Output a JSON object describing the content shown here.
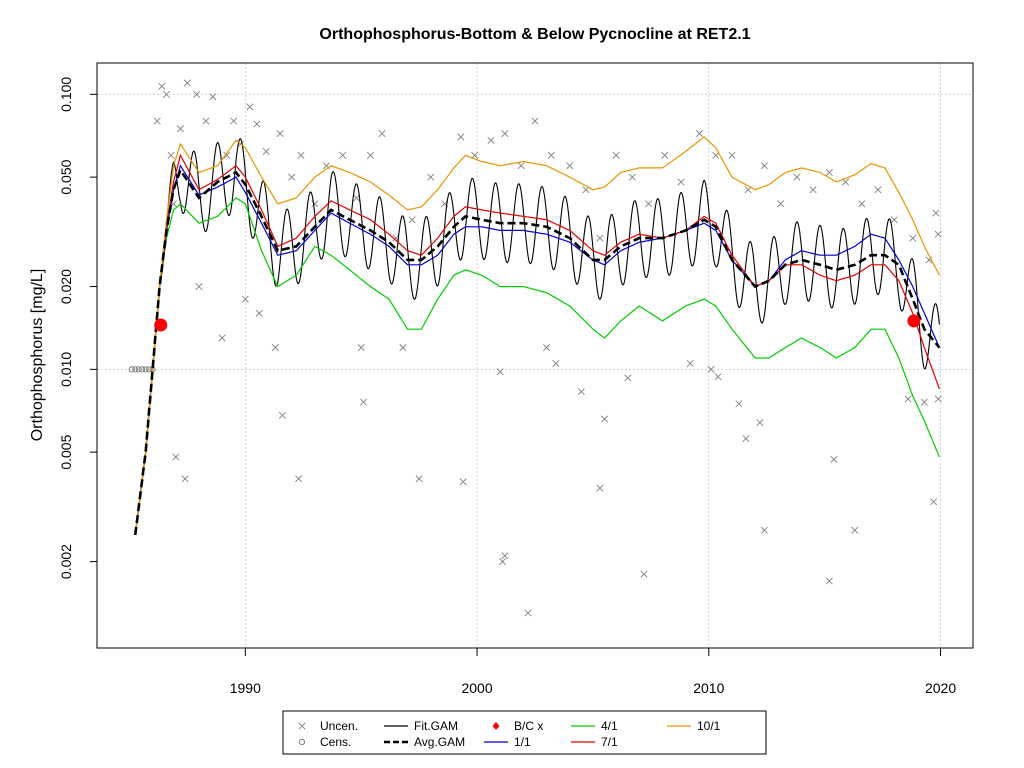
{
  "chart_data": {
    "type": "scatter",
    "title": "Orthophosphorus-Bottom & Below Pycnocline at RET2.1",
    "xlabel": "",
    "ylabel": "Orthophosphorus [mg/L]",
    "xlim": [
      1983.6,
      2021.4
    ],
    "ylim": [
      0.00097,
      0.13
    ],
    "y_scale": "log",
    "x_ticks": [
      1990,
      2000,
      2010,
      2020
    ],
    "x_tick_labels": [
      "1990",
      "2000",
      "2010",
      "2020"
    ],
    "y_ticks": [
      0.002,
      0.005,
      0.01,
      0.02,
      0.05,
      0.1
    ],
    "y_tick_labels": [
      "0.002",
      "0.005",
      "0.010",
      "0.020",
      "0.050",
      "0.100"
    ],
    "grid": true,
    "legend_position": "bottom",
    "series": [
      {
        "name": "Uncen.",
        "kind": "points",
        "marker": "x",
        "color": "#7f7f7f",
        "points": [
          [
            1986.2,
            0.08
          ],
          [
            1986.4,
            0.107
          ],
          [
            1986.6,
            0.1
          ],
          [
            1986.8,
            0.06
          ],
          [
            1987.2,
            0.075
          ],
          [
            1987.5,
            0.11
          ],
          [
            1987.9,
            0.1
          ],
          [
            1988.3,
            0.08
          ],
          [
            1988.6,
            0.098
          ],
          [
            1989.2,
            0.06
          ],
          [
            1989.5,
            0.08
          ],
          [
            1989.8,
            0.066
          ],
          [
            1990.2,
            0.09
          ],
          [
            1990.5,
            0.078
          ],
          [
            1990.9,
            0.062
          ],
          [
            1991.5,
            0.072
          ],
          [
            1992.0,
            0.05
          ],
          [
            1992.4,
            0.06
          ],
          [
            1993.0,
            0.04
          ],
          [
            1993.5,
            0.055
          ],
          [
            1994.2,
            0.06
          ],
          [
            1994.8,
            0.042
          ],
          [
            1995.4,
            0.06
          ],
          [
            1995.9,
            0.072
          ],
          [
            1996.5,
            0.03
          ],
          [
            1997.2,
            0.035
          ],
          [
            1998.0,
            0.05
          ],
          [
            1998.6,
            0.04
          ],
          [
            1999.3,
            0.07
          ],
          [
            1999.9,
            0.06
          ],
          [
            2000.6,
            0.068
          ],
          [
            2001.2,
            0.072
          ],
          [
            2001.9,
            0.055
          ],
          [
            2002.5,
            0.08
          ],
          [
            2003.2,
            0.06
          ],
          [
            2004.0,
            0.055
          ],
          [
            2004.7,
            0.045
          ],
          [
            2005.3,
            0.03
          ],
          [
            2006.0,
            0.06
          ],
          [
            2006.7,
            0.05
          ],
          [
            2007.4,
            0.04
          ],
          [
            2008.1,
            0.06
          ],
          [
            2008.8,
            0.048
          ],
          [
            2009.6,
            0.072
          ],
          [
            2010.3,
            0.06
          ],
          [
            2011.0,
            0.06
          ],
          [
            2011.7,
            0.045
          ],
          [
            2012.4,
            0.055
          ],
          [
            2013.1,
            0.04
          ],
          [
            2013.8,
            0.05
          ],
          [
            2014.5,
            0.045
          ],
          [
            2015.2,
            0.052
          ],
          [
            2015.9,
            0.048
          ],
          [
            2016.6,
            0.04
          ],
          [
            2017.3,
            0.045
          ],
          [
            2018.0,
            0.035
          ],
          [
            2018.8,
            0.03
          ],
          [
            2019.5,
            0.025
          ],
          [
            2019.9,
            0.031
          ],
          [
            2019.8,
            0.037
          ],
          [
            1987.0,
            0.0048
          ],
          [
            1987.4,
            0.004
          ],
          [
            1986.9,
            0.04
          ],
          [
            1988.0,
            0.02
          ],
          [
            1989.0,
            0.013
          ],
          [
            1990.0,
            0.018
          ],
          [
            1990.6,
            0.016
          ],
          [
            1991.3,
            0.012
          ],
          [
            1991.6,
            0.0068
          ],
          [
            1992.3,
            0.004
          ],
          [
            1995.1,
            0.0076
          ],
          [
            1995.0,
            0.012
          ],
          [
            1996.8,
            0.012
          ],
          [
            1997.5,
            0.004
          ],
          [
            1999.4,
            0.0039
          ],
          [
            2001.0,
            0.0098
          ],
          [
            2001.2,
            0.0021
          ],
          [
            2001.1,
            0.002
          ],
          [
            2002.2,
            0.0013
          ],
          [
            2003.0,
            0.012
          ],
          [
            2003.4,
            0.0105
          ],
          [
            2004.5,
            0.0083
          ],
          [
            2005.3,
            0.0037
          ],
          [
            2005.5,
            0.0066
          ],
          [
            2006.5,
            0.0093
          ],
          [
            2007.2,
            0.0018
          ],
          [
            2009.2,
            0.0105
          ],
          [
            2010.1,
            0.01
          ],
          [
            2010.4,
            0.0094
          ],
          [
            2011.3,
            0.0075
          ],
          [
            2011.6,
            0.0056
          ],
          [
            2012.2,
            0.0064
          ],
          [
            2012.4,
            0.0026
          ],
          [
            2015.4,
            0.0047
          ],
          [
            2015.2,
            0.0017
          ],
          [
            2016.3,
            0.0026
          ],
          [
            2018.6,
            0.0078
          ],
          [
            2019.3,
            0.0076
          ],
          [
            2019.7,
            0.0033
          ],
          [
            2019.9,
            0.0078
          ]
        ]
      },
      {
        "name": "Cens.",
        "kind": "points",
        "marker": "circle-open",
        "color": "#7f7f7f",
        "points": [
          [
            1985.1,
            0.01
          ],
          [
            1985.25,
            0.01
          ],
          [
            1985.4,
            0.01
          ],
          [
            1985.55,
            0.01
          ],
          [
            1985.7,
            0.01
          ],
          [
            1985.85,
            0.01
          ],
          [
            1986.0,
            0.01
          ]
        ]
      },
      {
        "name": "Fit.GAM",
        "kind": "line",
        "color": "#000000",
        "width": 1.1,
        "source": "seasonal oscillation of Avg.GAM"
      },
      {
        "name": "B/C x",
        "kind": "points",
        "marker": "dot",
        "color": "#ff0000",
        "points": [
          [
            1986.35,
            0.0145
          ],
          [
            2018.85,
            0.015
          ]
        ]
      },
      {
        "name": "Avg.GAM",
        "kind": "line",
        "color": "#000000",
        "dash": "8,4",
        "width": 2.6,
        "x": [
          1985.25,
          1985.7,
          1986.0,
          1986.3,
          1986.6,
          1986.9,
          1987.2,
          1988.0,
          1988.8,
          1989.6,
          1990.0,
          1990.7,
          1991.4,
          1992.2,
          1993.0,
          1993.7,
          1994.5,
          1995.4,
          1996.2,
          1997.0,
          1997.6,
          1998.3,
          1999.0,
          1999.5,
          2000.2,
          2001.0,
          2002.0,
          2003.0,
          2004.0,
          2005.0,
          2005.5,
          2006.2,
          2007.0,
          2008.0,
          2009.0,
          2009.8,
          2010.3,
          2011.0,
          2012.0,
          2012.6,
          2013.3,
          2014.0,
          2014.8,
          2015.5,
          2016.3,
          2017.0,
          2017.6,
          2018.2,
          2018.8,
          2019.3,
          2019.95
        ],
        "y": [
          0.0025,
          0.005,
          0.01,
          0.02,
          0.032,
          0.045,
          0.053,
          0.042,
          0.048,
          0.052,
          0.047,
          0.036,
          0.027,
          0.028,
          0.033,
          0.038,
          0.035,
          0.032,
          0.029,
          0.025,
          0.025,
          0.028,
          0.033,
          0.036,
          0.035,
          0.034,
          0.034,
          0.033,
          0.03,
          0.025,
          0.025,
          0.028,
          0.03,
          0.03,
          0.032,
          0.035,
          0.033,
          0.025,
          0.02,
          0.021,
          0.024,
          0.025,
          0.024,
          0.023,
          0.024,
          0.026,
          0.026,
          0.024,
          0.018,
          0.014,
          0.012
        ]
      },
      {
        "name": "1/1",
        "kind": "line",
        "color": "#0000cc",
        "width": 1.2,
        "x": [
          1985.25,
          1985.7,
          1986.0,
          1986.3,
          1986.6,
          1986.9,
          1987.2,
          1988.0,
          1988.8,
          1989.6,
          1990.0,
          1990.7,
          1991.4,
          1992.2,
          1993.0,
          1993.7,
          1994.5,
          1995.4,
          1996.2,
          1997.0,
          1997.6,
          1998.3,
          1999.0,
          1999.5,
          2000.2,
          2001.0,
          2002.0,
          2003.0,
          2004.0,
          2005.0,
          2005.5,
          2006.2,
          2007.0,
          2008.0,
          2009.0,
          2009.8,
          2010.3,
          2011.0,
          2012.0,
          2012.6,
          2013.3,
          2014.0,
          2014.8,
          2015.5,
          2016.3,
          2017.0,
          2017.6,
          2018.2,
          2018.8,
          2019.3,
          2019.95
        ],
        "y": [
          0.0025,
          0.005,
          0.01,
          0.02,
          0.032,
          0.045,
          0.055,
          0.043,
          0.046,
          0.05,
          0.044,
          0.034,
          0.026,
          0.027,
          0.032,
          0.037,
          0.034,
          0.031,
          0.028,
          0.024,
          0.024,
          0.026,
          0.031,
          0.033,
          0.033,
          0.032,
          0.032,
          0.031,
          0.029,
          0.025,
          0.024,
          0.027,
          0.029,
          0.03,
          0.032,
          0.034,
          0.032,
          0.025,
          0.02,
          0.021,
          0.025,
          0.027,
          0.026,
          0.026,
          0.028,
          0.031,
          0.03,
          0.025,
          0.02,
          0.016,
          0.012
        ]
      },
      {
        "name": "4/1",
        "kind": "line",
        "color": "#00cc00",
        "width": 1.2,
        "x": [
          1985.25,
          1985.7,
          1986.0,
          1986.3,
          1986.6,
          1986.9,
          1987.2,
          1988.0,
          1988.8,
          1989.6,
          1990.0,
          1990.7,
          1991.4,
          1992.2,
          1993.0,
          1993.7,
          1994.5,
          1995.4,
          1996.2,
          1997.0,
          1997.6,
          1998.3,
          1999.0,
          1999.5,
          2000.2,
          2001.0,
          2002.0,
          2003.0,
          2004.0,
          2005.0,
          2005.5,
          2006.2,
          2007.0,
          2008.0,
          2009.0,
          2009.8,
          2010.3,
          2011.0,
          2012.0,
          2012.6,
          2013.3,
          2014.0,
          2014.8,
          2015.5,
          2016.3,
          2017.0,
          2017.6,
          2018.2,
          2018.8,
          2019.3,
          2019.95
        ],
        "y": [
          0.0025,
          0.005,
          0.01,
          0.02,
          0.03,
          0.038,
          0.04,
          0.034,
          0.036,
          0.042,
          0.04,
          0.027,
          0.02,
          0.022,
          0.028,
          0.026,
          0.023,
          0.02,
          0.018,
          0.014,
          0.014,
          0.018,
          0.022,
          0.023,
          0.022,
          0.02,
          0.02,
          0.019,
          0.017,
          0.014,
          0.013,
          0.015,
          0.017,
          0.015,
          0.017,
          0.018,
          0.017,
          0.014,
          0.011,
          0.011,
          0.012,
          0.013,
          0.012,
          0.011,
          0.012,
          0.014,
          0.014,
          0.011,
          0.008,
          0.0065,
          0.0048
        ]
      },
      {
        "name": "7/1",
        "kind": "line",
        "color": "#dd0000",
        "width": 1.2,
        "x": [
          1985.25,
          1985.7,
          1986.0,
          1986.3,
          1986.6,
          1986.9,
          1987.2,
          1988.0,
          1988.8,
          1989.6,
          1990.0,
          1990.7,
          1991.4,
          1992.2,
          1993.0,
          1993.7,
          1994.5,
          1995.4,
          1996.2,
          1997.0,
          1997.6,
          1998.3,
          1999.0,
          1999.5,
          2000.2,
          2001.0,
          2002.0,
          2003.0,
          2004.0,
          2005.0,
          2005.5,
          2006.2,
          2007.0,
          2008.0,
          2009.0,
          2009.8,
          2010.3,
          2011.0,
          2012.0,
          2012.6,
          2013.3,
          2014.0,
          2014.8,
          2015.5,
          2016.3,
          2017.0,
          2017.6,
          2018.2,
          2018.8,
          2019.3,
          2019.95
        ],
        "y": [
          0.0025,
          0.005,
          0.01,
          0.02,
          0.033,
          0.048,
          0.06,
          0.045,
          0.049,
          0.055,
          0.05,
          0.038,
          0.028,
          0.03,
          0.036,
          0.041,
          0.038,
          0.035,
          0.031,
          0.027,
          0.026,
          0.03,
          0.036,
          0.039,
          0.038,
          0.037,
          0.036,
          0.035,
          0.032,
          0.027,
          0.026,
          0.029,
          0.031,
          0.03,
          0.032,
          0.036,
          0.034,
          0.026,
          0.02,
          0.021,
          0.024,
          0.024,
          0.022,
          0.021,
          0.022,
          0.024,
          0.024,
          0.021,
          0.016,
          0.012,
          0.0085
        ]
      },
      {
        "name": "10/1",
        "kind": "line",
        "color": "#e69500",
        "width": 1.2,
        "x": [
          1985.25,
          1985.7,
          1986.0,
          1986.3,
          1986.6,
          1986.9,
          1987.2,
          1988.0,
          1988.8,
          1989.6,
          1990.0,
          1990.7,
          1991.4,
          1992.2,
          1993.0,
          1993.7,
          1994.5,
          1995.4,
          1996.2,
          1997.0,
          1997.6,
          1998.3,
          1999.0,
          1999.5,
          2000.2,
          2001.0,
          2002.0,
          2003.0,
          2004.0,
          2005.0,
          2005.5,
          2006.2,
          2007.0,
          2008.0,
          2009.0,
          2009.8,
          2010.3,
          2011.0,
          2012.0,
          2012.6,
          2013.3,
          2014.0,
          2014.8,
          2015.5,
          2016.3,
          2017.0,
          2017.6,
          2018.2,
          2018.8,
          2019.3,
          2019.95
        ],
        "y": [
          0.0025,
          0.005,
          0.01,
          0.02,
          0.035,
          0.055,
          0.066,
          0.052,
          0.055,
          0.068,
          0.064,
          0.05,
          0.04,
          0.042,
          0.05,
          0.055,
          0.052,
          0.048,
          0.043,
          0.038,
          0.039,
          0.045,
          0.054,
          0.06,
          0.057,
          0.055,
          0.057,
          0.055,
          0.05,
          0.045,
          0.046,
          0.052,
          0.054,
          0.054,
          0.062,
          0.07,
          0.064,
          0.05,
          0.045,
          0.047,
          0.052,
          0.054,
          0.052,
          0.048,
          0.051,
          0.056,
          0.054,
          0.044,
          0.035,
          0.028,
          0.022
        ]
      }
    ],
    "legend": {
      "items": [
        {
          "label": "Uncen.",
          "symbol": "x",
          "color": "#7f7f7f"
        },
        {
          "label": "Cens.",
          "symbol": "circle-open",
          "color": "#7f7f7f"
        },
        {
          "label": "Fit.GAM",
          "symbol": "line",
          "color": "#000000"
        },
        {
          "label": "Avg.GAM",
          "symbol": "dashed-line",
          "color": "#000000"
        },
        {
          "label": "B/C x",
          "symbol": "diamond",
          "color": "#ff0000"
        },
        {
          "label": "1/1",
          "symbol": "line",
          "color": "#0000cc"
        },
        {
          "label": "4/1",
          "symbol": "line",
          "color": "#00cc00"
        },
        {
          "label": "7/1",
          "symbol": "line",
          "color": "#dd0000"
        },
        {
          "label": "10/1",
          "symbol": "line",
          "color": "#e69500"
        }
      ]
    }
  }
}
